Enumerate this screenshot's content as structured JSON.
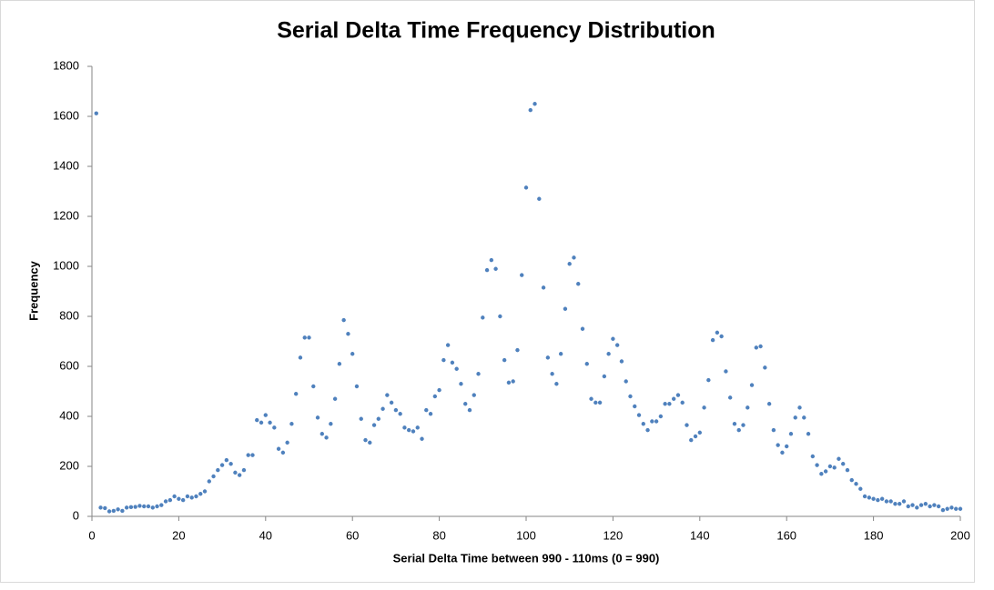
{
  "chart_data": {
    "type": "scatter",
    "title": "Serial Delta Time Frequency Distribution",
    "x_label": "Serial Delta Time between 990 - 110ms (0 = 990)",
    "y_label": "Frequency",
    "color": "#4f81bd",
    "grid": false,
    "xlim": [
      0,
      200
    ],
    "xticks": [
      0,
      20,
      40,
      60,
      80,
      100,
      120,
      140,
      160,
      180,
      200
    ],
    "ylim": [
      0,
      1800
    ],
    "yticks": [
      0,
      200,
      400,
      600,
      800,
      1000,
      1200,
      1400,
      1600,
      1800
    ],
    "x": [
      1,
      2,
      3,
      4,
      5,
      6,
      7,
      8,
      9,
      10,
      11,
      12,
      13,
      14,
      15,
      16,
      17,
      18,
      19,
      20,
      21,
      22,
      23,
      24,
      25,
      26,
      27,
      28,
      29,
      30,
      31,
      32,
      33,
      34,
      35,
      36,
      37,
      38,
      39,
      40,
      41,
      42,
      43,
      44,
      45,
      46,
      47,
      48,
      49,
      50,
      51,
      52,
      53,
      54,
      55,
      56,
      57,
      58,
      59,
      60,
      61,
      62,
      63,
      64,
      65,
      66,
      67,
      68,
      69,
      70,
      71,
      72,
      73,
      74,
      75,
      76,
      77,
      78,
      79,
      80,
      81,
      82,
      83,
      84,
      85,
      86,
      87,
      88,
      89,
      90,
      91,
      92,
      93,
      94,
      95,
      96,
      97,
      98,
      99,
      100,
      101,
      102,
      103,
      104,
      105,
      106,
      107,
      108,
      109,
      110,
      111,
      112,
      113,
      114,
      115,
      116,
      117,
      118,
      119,
      120,
      121,
      122,
      123,
      124,
      125,
      126,
      127,
      128,
      129,
      130,
      131,
      132,
      133,
      134,
      135,
      136,
      137,
      138,
      139,
      140,
      141,
      142,
      143,
      144,
      145,
      146,
      147,
      148,
      149,
      150,
      151,
      152,
      153,
      154,
      155,
      156,
      157,
      158,
      159,
      160,
      161,
      162,
      163,
      164,
      165,
      166,
      167,
      168,
      169,
      170,
      171,
      172,
      173,
      174,
      175,
      176,
      177,
      178,
      179,
      180,
      181,
      182,
      183,
      184,
      185,
      186,
      187,
      188,
      189,
      190,
      191,
      192,
      193,
      194,
      195,
      196,
      197,
      198,
      199,
      200
    ],
    "values": [
      1612,
      35,
      33,
      20,
      22,
      28,
      22,
      35,
      37,
      38,
      42,
      40,
      40,
      35,
      40,
      45,
      60,
      65,
      80,
      70,
      65,
      80,
      75,
      80,
      90,
      100,
      140,
      160,
      185,
      205,
      225,
      210,
      175,
      165,
      185,
      245,
      245,
      385,
      375,
      405,
      375,
      355,
      270,
      255,
      295,
      370,
      490,
      635,
      715,
      715,
      520,
      395,
      330,
      315,
      370,
      470,
      610,
      785,
      730,
      650,
      520,
      390,
      305,
      295,
      365,
      390,
      430,
      485,
      455,
      425,
      410,
      355,
      345,
      340,
      355,
      310,
      425,
      410,
      480,
      505,
      625,
      685,
      615,
      590,
      530,
      450,
      425,
      485,
      570,
      795,
      985,
      1025,
      990,
      800,
      625,
      535,
      540,
      665,
      965,
      1315,
      1625,
      1650,
      1270,
      915,
      635,
      570,
      530,
      650,
      830,
      1010,
      1035,
      930,
      750,
      610,
      470,
      455,
      455,
      560,
      650,
      710,
      685,
      620,
      540,
      480,
      440,
      405,
      370,
      345,
      380,
      380,
      400,
      450,
      450,
      470,
      485,
      455,
      365,
      305,
      320,
      335,
      435,
      545,
      705,
      735,
      720,
      580,
      475,
      370,
      345,
      365,
      435,
      525,
      675,
      680,
      595,
      450,
      345,
      285,
      255,
      280,
      330,
      395,
      435,
      395,
      330,
      240,
      205,
      170,
      180,
      200,
      195,
      230,
      210,
      185,
      145,
      130,
      110,
      80,
      75,
      70,
      65,
      70,
      60,
      60,
      50,
      50,
      60,
      40,
      45,
      35,
      45,
      50,
      40,
      45,
      40,
      25,
      30,
      35,
      30,
      30
    ]
  }
}
